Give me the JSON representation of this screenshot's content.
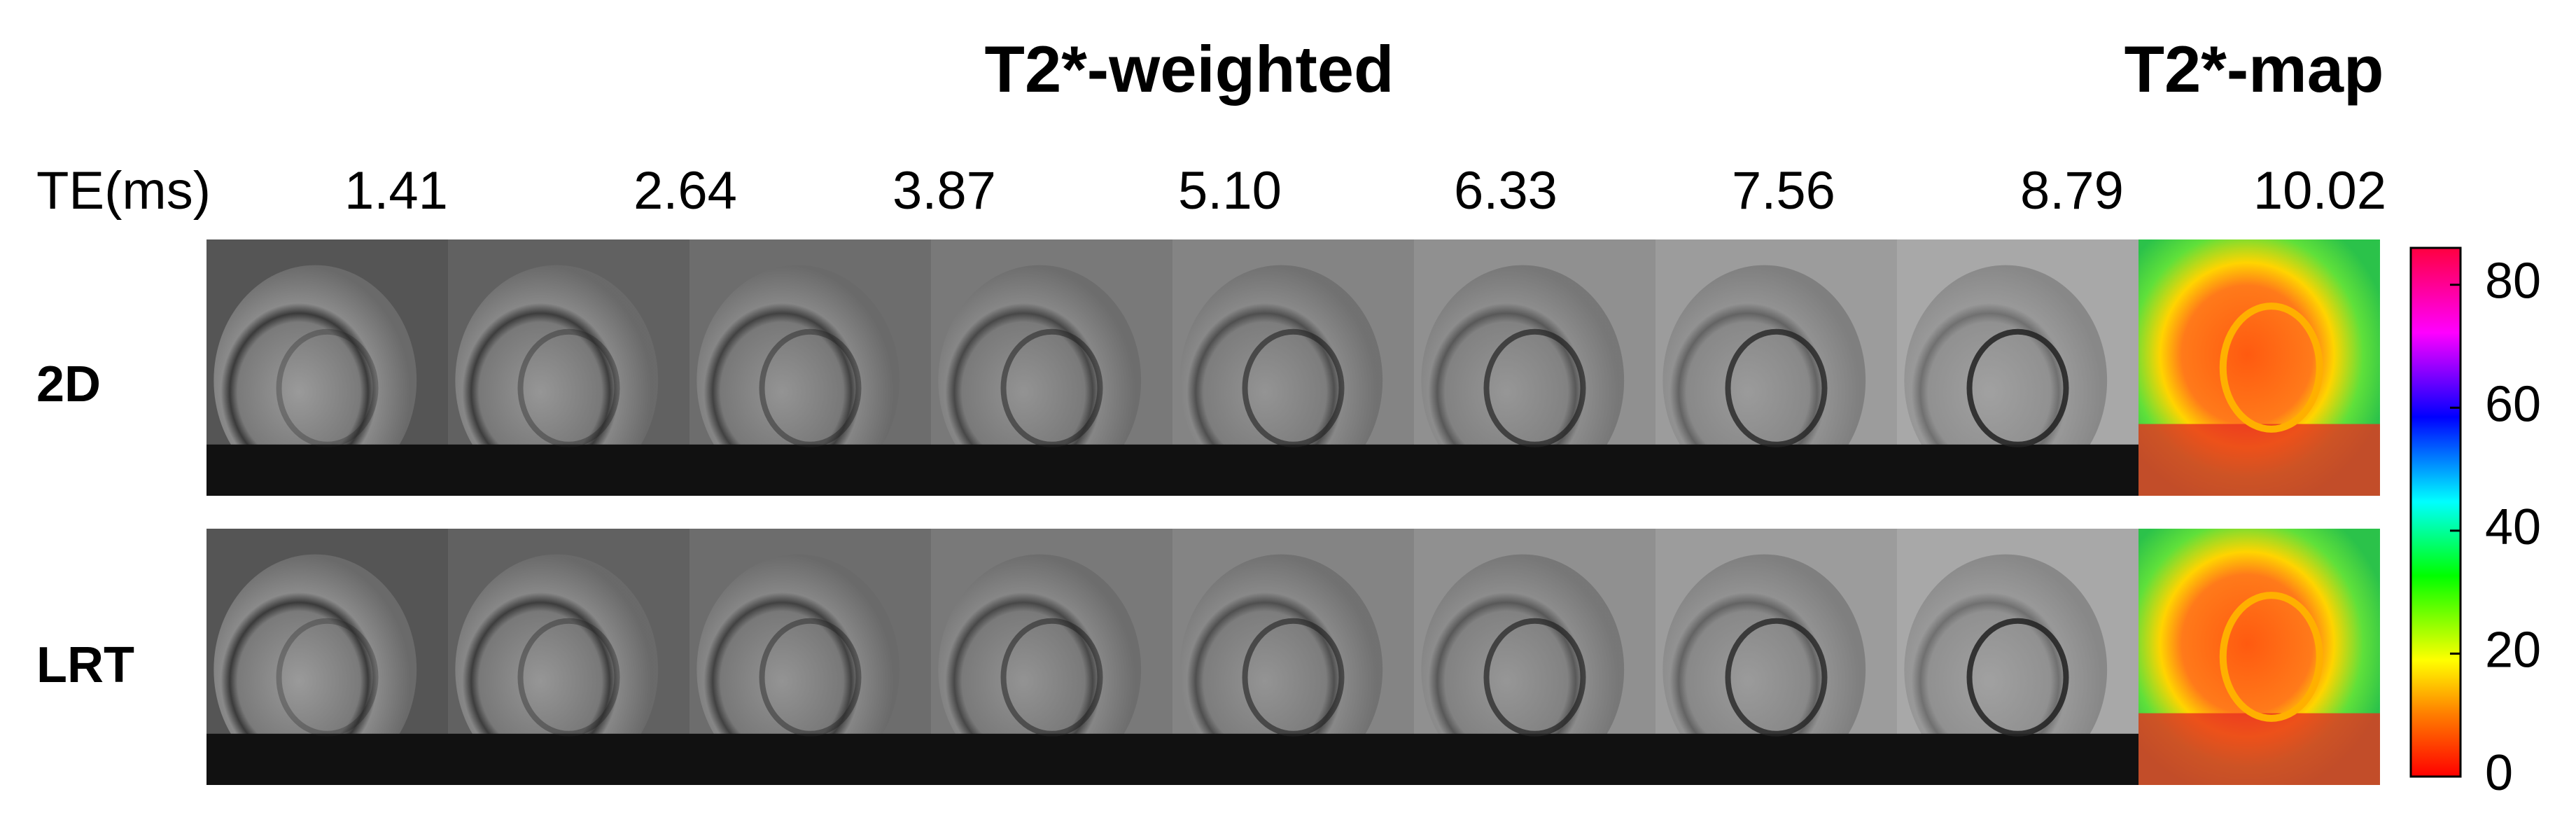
{
  "header": {
    "weighted_title": "T2*-weighted",
    "map_title": "T2*-map"
  },
  "te_label": "TE(ms)",
  "te_values": [
    "1.41",
    "2.64",
    "3.87",
    "5.10",
    "6.33",
    "7.56",
    "8.79",
    "10.02"
  ],
  "rows": [
    "2D",
    "LRT"
  ],
  "colorbar": {
    "range": [
      0,
      86
    ],
    "ticks": [
      0,
      20,
      40,
      60,
      80
    ]
  }
}
